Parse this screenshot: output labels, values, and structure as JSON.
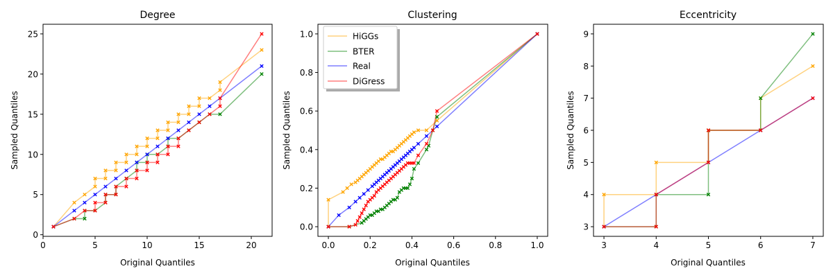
{
  "colors": {
    "HiGGs": "#ffa500",
    "BTER": "#008000",
    "Real": "#0000ff",
    "DiGress": "#ff0000"
  },
  "chart_data": [
    {
      "type": "line",
      "title": "Degree",
      "xlabel": "Original Quantiles",
      "ylabel": "Sampled Quantiles",
      "xlim": [
        0,
        22
      ],
      "ylim": [
        -0.2,
        26.2
      ],
      "xticks": [
        0,
        5,
        10,
        15,
        20
      ],
      "yticks": [
        0,
        5,
        10,
        15,
        20,
        25
      ],
      "xtick_labels": [
        "0",
        "5",
        "10",
        "15",
        "20"
      ],
      "ytick_labels": [
        "0",
        "5",
        "10",
        "15",
        "20",
        "25"
      ],
      "series": [
        {
          "name": "HiGGs",
          "color": "#ffa500",
          "x": [
            1,
            3,
            4,
            5,
            5,
            6,
            6,
            7,
            7,
            8,
            8,
            9,
            9,
            10,
            10,
            11,
            11,
            12,
            12,
            13,
            13,
            14,
            14,
            15,
            15,
            16,
            17,
            17,
            21
          ],
          "y": [
            1,
            4,
            5,
            6,
            7,
            7,
            8,
            8,
            9,
            9,
            10,
            10,
            11,
            11,
            12,
            12,
            13,
            13,
            14,
            14,
            15,
            15,
            16,
            16,
            17,
            17,
            18,
            19,
            23
          ]
        },
        {
          "name": "BTER",
          "color": "#008000",
          "x": [
            1,
            3,
            4,
            4,
            5,
            6,
            6,
            7,
            7,
            8,
            8,
            9,
            9,
            10,
            10,
            11,
            12,
            12,
            13,
            14,
            15,
            15,
            16,
            17,
            21
          ],
          "y": [
            1,
            2,
            2,
            3,
            3,
            4,
            5,
            5,
            6,
            7,
            7,
            8,
            9,
            9,
            10,
            10,
            11,
            12,
            12,
            13,
            14,
            14,
            15,
            15,
            20
          ]
        },
        {
          "name": "Real",
          "color": "#0000ff",
          "x": [
            1,
            3,
            4,
            5,
            6,
            7,
            8,
            9,
            10,
            11,
            12,
            13,
            14,
            15,
            16,
            17,
            21
          ],
          "y": [
            1,
            3,
            4,
            5,
            6,
            7,
            8,
            9,
            10,
            11,
            12,
            13,
            14,
            15,
            16,
            17,
            21
          ]
        },
        {
          "name": "DiGress",
          "color": "#ff0000",
          "x": [
            1,
            3,
            4,
            5,
            5,
            6,
            6,
            7,
            7,
            8,
            8,
            9,
            9,
            10,
            10,
            11,
            11,
            12,
            12,
            13,
            13,
            14,
            15,
            16,
            17,
            17,
            21
          ],
          "y": [
            1,
            2,
            3,
            3,
            4,
            4,
            5,
            5,
            6,
            6,
            7,
            7,
            8,
            8,
            9,
            9,
            10,
            10,
            11,
            11,
            12,
            13,
            14,
            15,
            16,
            17,
            25
          ]
        }
      ]
    },
    {
      "type": "line",
      "title": "Clustering",
      "xlabel": "Original Quantiles",
      "ylabel": "Sampled Quantiles",
      "xlim": [
        -0.05,
        1.05
      ],
      "ylim": [
        -0.05,
        1.05
      ],
      "xticks": [
        0,
        0.2,
        0.4,
        0.6,
        0.8,
        1.0
      ],
      "yticks": [
        0,
        0.2,
        0.4,
        0.6,
        0.8,
        1.0
      ],
      "xtick_labels": [
        "0.0",
        "0.2",
        "0.4",
        "0.6",
        "0.8",
        "1.0"
      ],
      "ytick_labels": [
        "0.0",
        "0.2",
        "0.4",
        "0.6",
        "0.8",
        "1.0"
      ],
      "legend": {
        "position": "upper-left",
        "entries": [
          "HiGGs",
          "BTER",
          "Real",
          "DiGress"
        ]
      },
      "series": [
        {
          "name": "HiGGs",
          "color": "#ffa500",
          "x": [
            0,
            0,
            0.07,
            0.09,
            0.11,
            0.13,
            0.14,
            0.15,
            0.16,
            0.17,
            0.18,
            0.19,
            0.2,
            0.21,
            0.22,
            0.23,
            0.24,
            0.25,
            0.26,
            0.27,
            0.28,
            0.29,
            0.3,
            0.31,
            0.32,
            0.33,
            0.34,
            0.35,
            0.36,
            0.37,
            0.38,
            0.39,
            0.4,
            0.41,
            0.43,
            0.47,
            0.52,
            1.0
          ],
          "y": [
            0,
            0.14,
            0.18,
            0.2,
            0.22,
            0.23,
            0.24,
            0.25,
            0.26,
            0.27,
            0.28,
            0.29,
            0.3,
            0.31,
            0.32,
            0.33,
            0.34,
            0.35,
            0.35,
            0.36,
            0.37,
            0.38,
            0.39,
            0.39,
            0.4,
            0.41,
            0.42,
            0.43,
            0.44,
            0.45,
            0.46,
            0.47,
            0.48,
            0.49,
            0.5,
            0.5,
            0.55,
            1.0
          ]
        },
        {
          "name": "BTER",
          "color": "#008000",
          "x": [
            0,
            0.1,
            0.16,
            0.17,
            0.18,
            0.19,
            0.2,
            0.21,
            0.22,
            0.23,
            0.24,
            0.25,
            0.26,
            0.27,
            0.28,
            0.29,
            0.3,
            0.31,
            0.32,
            0.33,
            0.34,
            0.35,
            0.36,
            0.37,
            0.38,
            0.39,
            0.4,
            0.41,
            0.43,
            0.47,
            0.48,
            0.5,
            0.52,
            1.0
          ],
          "y": [
            0,
            0,
            0.02,
            0.03,
            0.04,
            0.05,
            0.06,
            0.06,
            0.07,
            0.08,
            0.08,
            0.09,
            0.09,
            0.1,
            0.11,
            0.12,
            0.13,
            0.14,
            0.14,
            0.15,
            0.18,
            0.19,
            0.2,
            0.2,
            0.2,
            0.22,
            0.25,
            0.3,
            0.33,
            0.4,
            0.42,
            0.5,
            0.57,
            1.0
          ]
        },
        {
          "name": "Real",
          "color": "#0000ff",
          "x": [
            0,
            0.05,
            0.1,
            0.13,
            0.15,
            0.17,
            0.19,
            0.21,
            0.22,
            0.23,
            0.24,
            0.25,
            0.26,
            0.27,
            0.28,
            0.29,
            0.3,
            0.31,
            0.32,
            0.33,
            0.34,
            0.35,
            0.36,
            0.37,
            0.38,
            0.39,
            0.4,
            0.41,
            0.43,
            0.47,
            0.52,
            1.0
          ],
          "y": [
            0,
            0.06,
            0.1,
            0.13,
            0.15,
            0.17,
            0.19,
            0.21,
            0.22,
            0.23,
            0.24,
            0.25,
            0.26,
            0.27,
            0.28,
            0.29,
            0.3,
            0.31,
            0.32,
            0.33,
            0.34,
            0.35,
            0.36,
            0.37,
            0.38,
            0.39,
            0.4,
            0.41,
            0.43,
            0.47,
            0.52,
            1.0
          ]
        },
        {
          "name": "DiGress",
          "color": "#ff0000",
          "x": [
            0,
            0.1,
            0.13,
            0.14,
            0.15,
            0.16,
            0.17,
            0.18,
            0.19,
            0.2,
            0.21,
            0.22,
            0.23,
            0.24,
            0.25,
            0.26,
            0.27,
            0.28,
            0.29,
            0.3,
            0.31,
            0.32,
            0.33,
            0.34,
            0.35,
            0.36,
            0.37,
            0.38,
            0.39,
            0.4,
            0.41,
            0.43,
            0.47,
            0.5,
            0.52,
            1.0
          ],
          "y": [
            0,
            0,
            0.01,
            0.03,
            0.05,
            0.07,
            0.09,
            0.11,
            0.13,
            0.14,
            0.15,
            0.16,
            0.18,
            0.19,
            0.2,
            0.21,
            0.22,
            0.23,
            0.24,
            0.25,
            0.26,
            0.27,
            0.28,
            0.29,
            0.3,
            0.31,
            0.32,
            0.33,
            0.33,
            0.33,
            0.33,
            0.37,
            0.43,
            0.5,
            0.6,
            1.0
          ]
        }
      ]
    },
    {
      "type": "line",
      "title": "Eccentricity",
      "xlabel": "Original Quantiles",
      "ylabel": "Sampled Quantiles",
      "xlim": [
        2.8,
        7.2
      ],
      "ylim": [
        2.7,
        9.3
      ],
      "xticks": [
        3,
        4,
        5,
        6,
        7
      ],
      "yticks": [
        3,
        4,
        5,
        6,
        7,
        8,
        9
      ],
      "xtick_labels": [
        "3",
        "4",
        "5",
        "6",
        "7"
      ],
      "ytick_labels": [
        "3",
        "4",
        "5",
        "6",
        "7",
        "8",
        "9"
      ],
      "series": [
        {
          "name": "HiGGs",
          "color": "#ffa500",
          "x": [
            3,
            3,
            4,
            4,
            5,
            5,
            6,
            6,
            7
          ],
          "y": [
            3,
            4,
            4,
            5,
            5,
            6,
            6,
            7,
            8
          ]
        },
        {
          "name": "BTER",
          "color": "#008000",
          "x": [
            3,
            4,
            4,
            5,
            5,
            6,
            6,
            7
          ],
          "y": [
            3,
            3,
            4,
            4,
            6,
            6,
            7,
            9
          ]
        },
        {
          "name": "Real",
          "color": "#0000ff",
          "x": [
            3,
            4,
            5,
            6,
            7
          ],
          "y": [
            3,
            4,
            5,
            6,
            7
          ]
        },
        {
          "name": "DiGress",
          "color": "#ff0000",
          "x": [
            3,
            4,
            4,
            5,
            5,
            6,
            7
          ],
          "y": [
            3,
            3,
            4,
            5,
            6,
            6,
            7
          ]
        }
      ]
    }
  ]
}
